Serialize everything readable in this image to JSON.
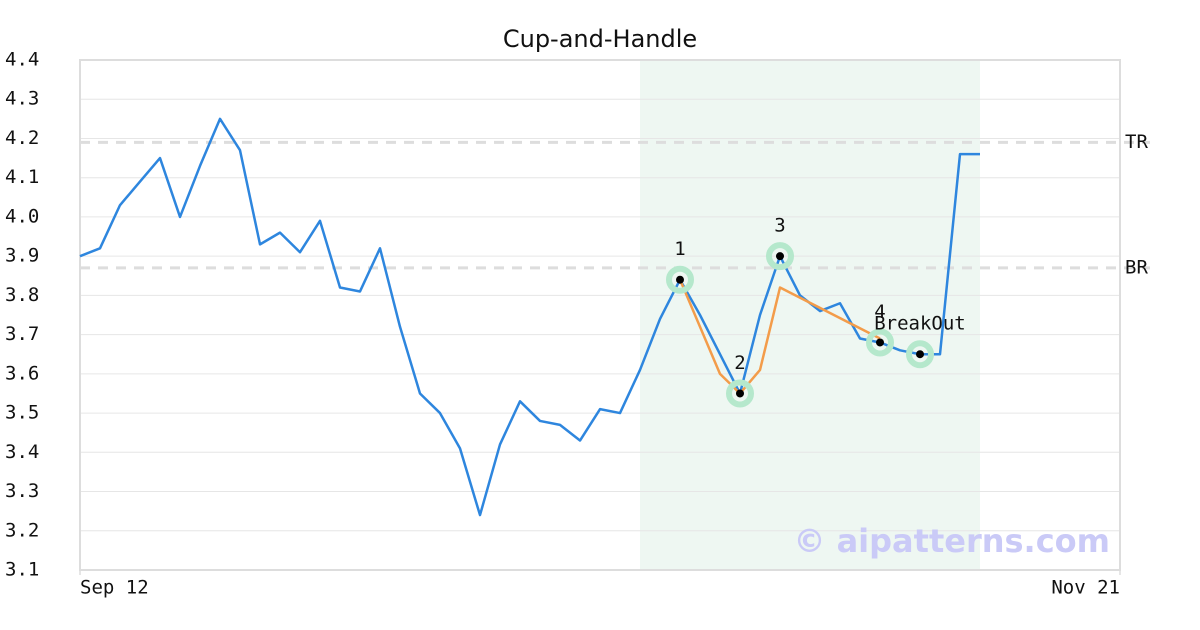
{
  "chart_data": {
    "type": "line",
    "title": "Cup-and-Handle",
    "x": [
      0,
      1,
      2,
      3,
      4,
      5,
      6,
      7,
      8,
      9,
      10,
      11,
      12,
      13,
      14,
      15,
      16,
      17,
      18,
      19,
      20,
      21,
      22,
      23,
      24,
      25,
      26,
      27,
      28,
      29,
      30,
      31,
      32,
      33,
      34,
      35,
      36,
      37,
      38,
      39,
      40,
      41,
      42,
      43,
      44,
      45
    ],
    "series": [
      {
        "color": "#2e86de",
        "values": [
          3.9,
          3.92,
          4.03,
          4.09,
          4.15,
          4.0,
          4.13,
          4.25,
          4.17,
          3.93,
          3.96,
          3.91,
          3.99,
          3.82,
          3.81,
          3.92,
          3.72,
          3.55,
          3.5,
          3.41,
          3.24,
          3.42,
          3.53,
          3.48,
          3.47,
          3.43,
          3.51,
          3.5,
          3.61,
          3.74,
          3.84,
          3.75,
          3.65,
          3.55,
          3.75,
          3.9,
          3.8,
          3.76,
          3.78,
          3.69,
          3.68,
          3.66,
          3.65,
          3.65,
          4.16,
          4.16
        ]
      }
    ],
    "pattern_line": {
      "color": "#f39c4a",
      "x": [
        30,
        32,
        33,
        34,
        35,
        40
      ],
      "values": [
        3.84,
        3.6,
        3.55,
        3.61,
        3.82,
        3.69
      ]
    },
    "points": [
      {
        "label": "1",
        "x": 30,
        "value": 3.84
      },
      {
        "label": "2",
        "x": 33,
        "value": 3.55
      },
      {
        "label": "3",
        "x": 35,
        "value": 3.9
      },
      {
        "label": "4",
        "x": 40,
        "value": 3.68
      },
      {
        "label": "BreakOut",
        "x": 42,
        "value": 3.65
      }
    ],
    "levels": [
      {
        "label": "TR",
        "value": 4.19
      },
      {
        "label": "BR",
        "value": 3.87
      }
    ],
    "region": [
      28,
      45
    ],
    "xlim": [
      0,
      52
    ],
    "xticks": [
      {
        "value": 0,
        "label": "Sep 12"
      },
      {
        "value": 52,
        "label": "Nov 21"
      }
    ],
    "ylim": [
      3.1,
      4.4
    ],
    "yticks": [
      3.1,
      3.2,
      3.3,
      3.4,
      3.5,
      3.6,
      3.7,
      3.8,
      3.9,
      {
        "value": 4,
        "label": "4.0"
      },
      4.1,
      4.2,
      4.3,
      4.4
    ],
    "grid": true,
    "watermark": "© aipatterns.com"
  }
}
